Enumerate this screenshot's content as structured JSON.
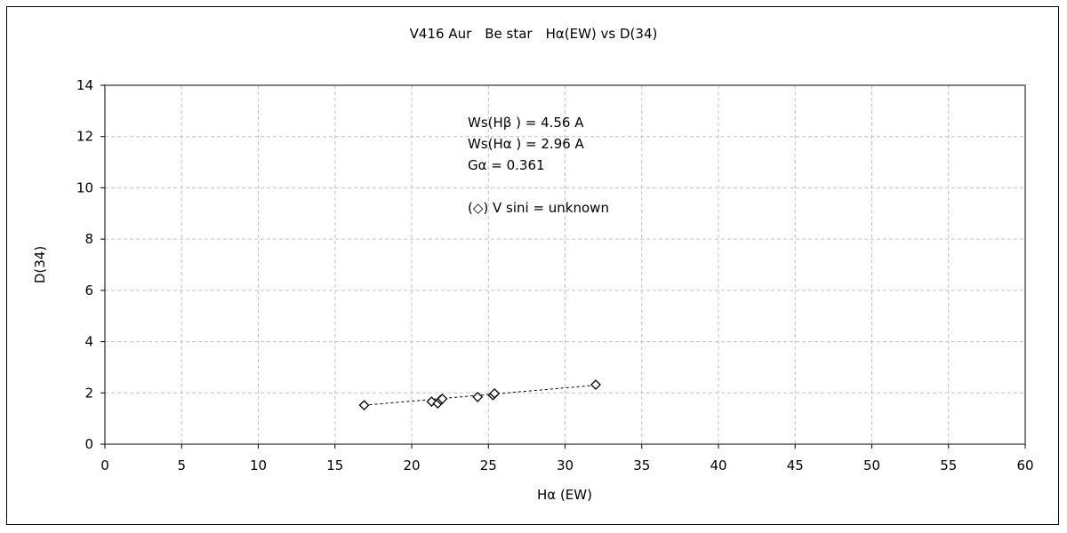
{
  "chart_data": {
    "type": "scatter",
    "title": "V416 Aur　Be star　Hα(EW) vs D(34)",
    "xlabel": "Hα (EW)",
    "ylabel": "D(34)",
    "xlim": [
      0,
      60
    ],
    "ylim": [
      0,
      14
    ],
    "xticks": [
      0,
      5,
      10,
      15,
      20,
      25,
      30,
      35,
      40,
      45,
      50,
      55,
      60
    ],
    "yticks": [
      0,
      2,
      4,
      6,
      8,
      10,
      12,
      14
    ],
    "grid": true,
    "marker": "diamond",
    "points": [
      {
        "x": 16.9,
        "y": 1.52
      },
      {
        "x": 21.3,
        "y": 1.66
      },
      {
        "x": 21.7,
        "y": 1.59
      },
      {
        "x": 21.9,
        "y": 1.73
      },
      {
        "x": 22.0,
        "y": 1.77
      },
      {
        "x": 24.3,
        "y": 1.84
      },
      {
        "x": 25.3,
        "y": 1.91
      },
      {
        "x": 25.4,
        "y": 1.98
      },
      {
        "x": 32.0,
        "y": 2.32
      }
    ],
    "trendline": {
      "type": "linear",
      "x_range": [
        16.9,
        32.0
      ],
      "y_range": [
        1.52,
        2.3
      ]
    },
    "annotations": [
      "Ws(Hβ ) = 4.56 A",
      "Ws(Hα ) = 2.96 A",
      "Gα = 0.361",
      "(◇) V sini = unknown"
    ]
  }
}
